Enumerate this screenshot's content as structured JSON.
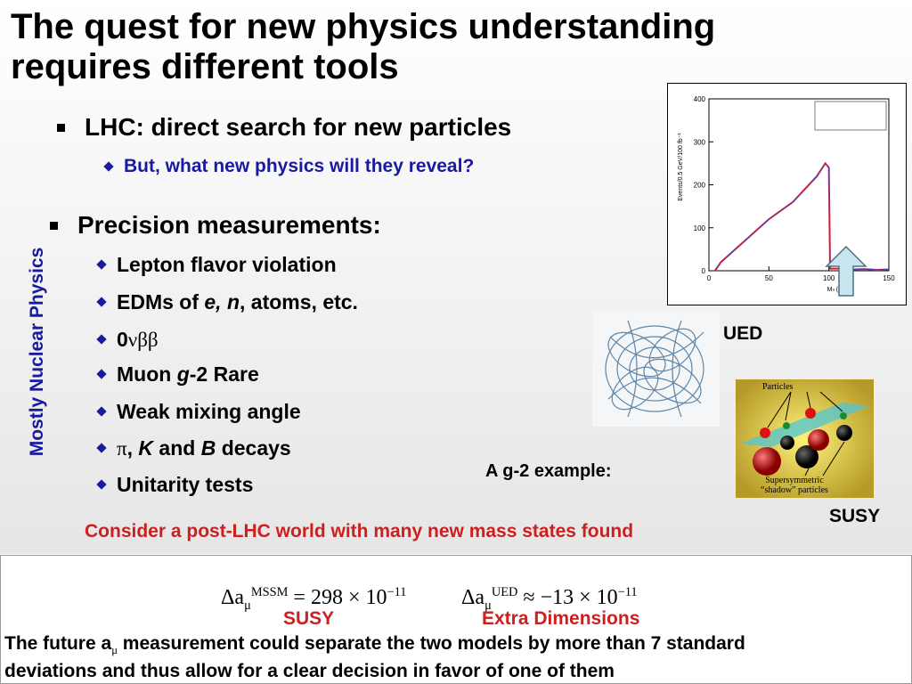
{
  "header": {
    "title": [
      "The quest for new physics understanding",
      "requires different tools"
    ]
  },
  "side_label": "Mostly Nuclear Physics",
  "lhc": {
    "text": "LHC: direct search for new particles",
    "sub": "But, what new physics will they reveal?"
  },
  "precision": {
    "text": "Precision measurements:",
    "items": [
      [
        "Lepton flavor violation"
      ],
      [
        "EDMs of ",
        "e, n",
        ", atoms, etc."
      ],
      [
        "0",
        "νββ"
      ],
      [
        "Muon ",
        "g",
        "-2 Rare"
      ],
      [
        "Weak mixing angle"
      ],
      [
        "π",
        ", ",
        "K",
        " and ",
        "B",
        " decays"
      ],
      [
        "Unitarity tests"
      ]
    ]
  },
  "labels": {
    "ued": "UED",
    "susy": "SUSY",
    "g2": "A g-2 example:",
    "consider": "Consider a post-LHC world with many new mass states found"
  },
  "susy_image": {
    "top": "Particles",
    "bottom": [
      "Supersymmetric",
      "“shadow” particles"
    ]
  },
  "plot": {
    "ylabel": "Events/0.5 GeV/100 fb⁻¹",
    "xlabel": "Mₗₗ (GeV)",
    "xlim": [
      0,
      150
    ],
    "ylim": [
      0,
      400
    ],
    "xticks": [
      0,
      50,
      100,
      150
    ],
    "yticks": [
      0,
      100,
      200,
      300,
      400
    ],
    "series": [
      {
        "color": "#e0202a",
        "x": [
          5,
          10,
          20,
          30,
          40,
          50,
          60,
          70,
          80,
          90,
          97,
          100,
          101,
          110,
          120,
          130,
          140,
          150
        ],
        "values": [
          0,
          20,
          45,
          70,
          95,
          120,
          140,
          160,
          190,
          220,
          250,
          240,
          5,
          5,
          3,
          4,
          2,
          3
        ]
      }
    ]
  },
  "formula": {
    "mssm": {
      "lhs": "Δa",
      "sub": "μ",
      "sup": "MSSM",
      "rel": "=",
      "value": "298 × 10",
      "exp": "−11"
    },
    "ued": {
      "lhs": "Δa",
      "sub": "μ",
      "sup": "UED",
      "rel": "≈",
      "value": "−13 × 10",
      "exp": "−11"
    }
  },
  "formula_labels": [
    "SUSY",
    "Extra Dimensions"
  ],
  "conclusion": {
    "line1": [
      "The future a",
      "μ",
      " measurement could separate the two models by more than 7 standard"
    ],
    "line2": "deviations and thus allow for a clear decision in favor of one of them"
  }
}
